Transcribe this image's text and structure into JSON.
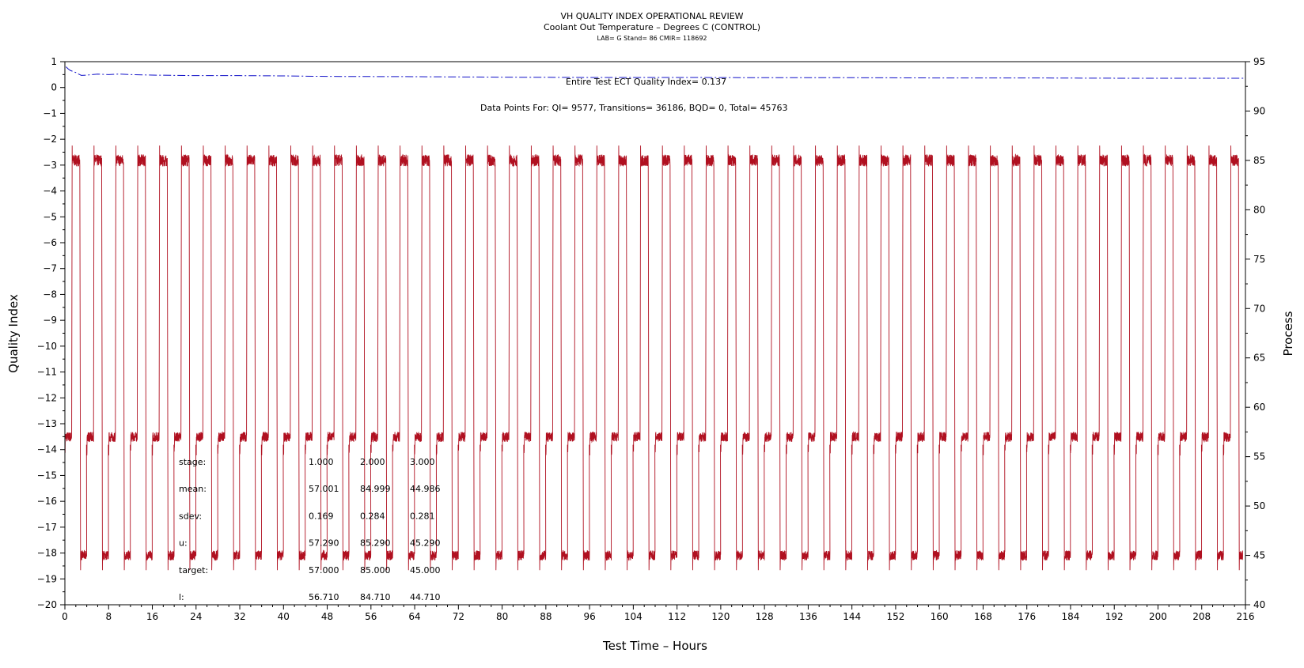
{
  "chart_data": {
    "type": "line",
    "title": "VH QUALITY INDEX OPERATIONAL REVIEW",
    "subtitle": "Coolant Out Temperature – Degrees C (CONTROL)",
    "lab_line": "LAB= G Stand= 86 CMIR= 118692",
    "xlabel": "Test Time – Hours",
    "ylabel": "Quality Index",
    "y2label": "Process",
    "xlim": [
      0,
      216
    ],
    "ylim": [
      -20,
      1
    ],
    "y2lim": [
      40,
      95
    ],
    "x_ticks": [
      0,
      8,
      16,
      24,
      32,
      40,
      48,
      56,
      64,
      72,
      80,
      88,
      96,
      104,
      112,
      120,
      128,
      136,
      144,
      152,
      160,
      168,
      176,
      184,
      192,
      200,
      208,
      216
    ],
    "x_tick_labels": [
      "0",
      "8",
      "16",
      "24",
      "32",
      "40",
      "48",
      "56",
      "64",
      "72",
      "80",
      "88",
      "96",
      "104",
      "112",
      "120",
      "128",
      "136",
      "144",
      "152",
      "160",
      "168",
      "176",
      "184",
      "192",
      "200",
      "208",
      "216"
    ],
    "y_ticks": [
      1,
      0,
      -1,
      -2,
      -3,
      -4,
      -5,
      -6,
      -7,
      -8,
      -9,
      -10,
      -11,
      -12,
      -13,
      -14,
      -15,
      -16,
      -17,
      -18,
      -19,
      -20
    ],
    "y_tick_labels": [
      "1",
      "0",
      "−1",
      "−2",
      "−3",
      "−4",
      "−5",
      "−6",
      "−7",
      "−8",
      "−9",
      "−10",
      "−11",
      "−12",
      "−13",
      "−14",
      "−15",
      "−16",
      "−17",
      "−18",
      "−19",
      "−20"
    ],
    "y2_ticks": [
      95,
      90,
      85,
      80,
      75,
      70,
      65,
      60,
      55,
      50,
      45,
      40
    ],
    "y2_tick_labels": [
      "95",
      "90",
      "85",
      "80",
      "75",
      "70",
      "65",
      "60",
      "55",
      "50",
      "45",
      "40"
    ],
    "annotations": {
      "quality_index": "Entire Test ECT Quality Index= 0.137",
      "data_points": "Data Points For: QI= 9577, Transitions= 36186, BQD= 0, Total= 45763"
    },
    "stats_table": {
      "rows": [
        {
          "label": "stage:",
          "values": [
            "1.000",
            "2.000",
            "3.000"
          ]
        },
        {
          "label": "mean:",
          "values": [
            "57.001",
            "84.999",
            "44.986"
          ]
        },
        {
          "label": "sdev:",
          "values": [
            "0.169",
            "0.284",
            "0.281"
          ]
        },
        {
          "label": "u:",
          "values": [
            "57.290",
            "85.290",
            "45.290"
          ]
        },
        {
          "label": "target:",
          "values": [
            "57.000",
            "85.000",
            "45.000"
          ]
        },
        {
          "label": "l:",
          "values": [
            "56.710",
            "84.710",
            "44.710"
          ]
        }
      ]
    },
    "series": [
      {
        "axis": "left",
        "color": "#1010c8",
        "style": "dash-dot",
        "x": [
          0.2,
          0.6,
          1,
          1.5,
          2,
          2.5,
          3,
          4,
          5,
          6,
          8,
          10,
          12,
          16,
          20,
          24,
          32,
          40,
          48,
          64,
          80,
          96,
          112,
          128,
          144,
          160,
          176,
          192,
          208,
          216
        ],
        "y": [
          0.8,
          0.72,
          0.66,
          0.62,
          0.58,
          0.52,
          0.47,
          0.48,
          0.5,
          0.52,
          0.5,
          0.52,
          0.5,
          0.48,
          0.47,
          0.46,
          0.46,
          0.45,
          0.43,
          0.42,
          0.4,
          0.39,
          0.39,
          0.38,
          0.38,
          0.37,
          0.37,
          0.36,
          0.36,
          0.36
        ]
      },
      {
        "axis": "right",
        "color": "#b01020",
        "style": "solid",
        "cycle_hours": 4,
        "start_hour": 0,
        "end_hour": 215.5,
        "stage_levels": [
          57.0,
          85.0,
          45.0
        ],
        "stage_hours": [
          1.25,
          1.5,
          1.25
        ]
      }
    ],
    "grid": false,
    "legend": "none"
  }
}
